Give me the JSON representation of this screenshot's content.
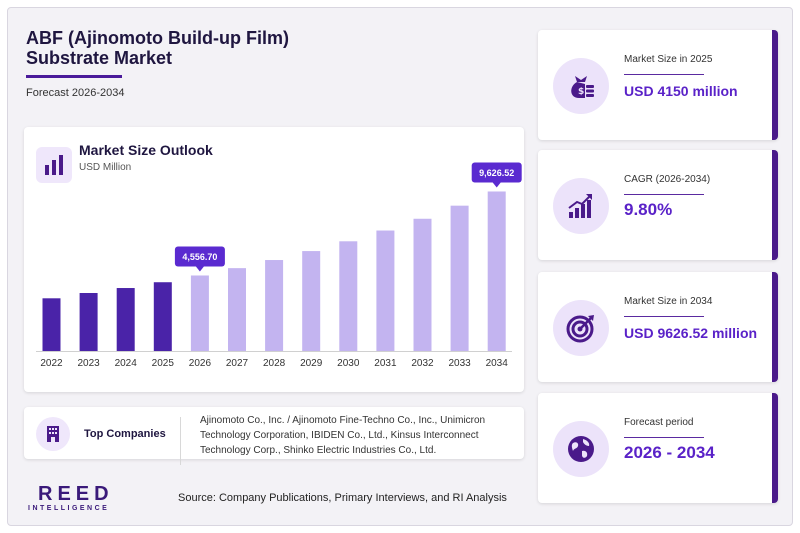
{
  "header": {
    "title_line1": "ABF (Ajinomoto Build-up Film)",
    "title_line2": "Substrate Market",
    "subtitle": "Forecast 2026-2034"
  },
  "chart_data": {
    "type": "bar",
    "title": "Market Size Outlook",
    "unit": "USD Million",
    "categories": [
      "2022",
      "2023",
      "2024",
      "2025",
      "2026",
      "2027",
      "2028",
      "2029",
      "2030",
      "2031",
      "2032",
      "2033",
      "2034"
    ],
    "values": [
      3180,
      3500,
      3800,
      4150,
      4556.7,
      5000,
      5490,
      6030,
      6620,
      7270,
      7980,
      8770,
      9626.52
    ],
    "historical_color": "#4a23a8",
    "forecast_color": "#c3b4f0",
    "callouts": [
      {
        "category": "2026",
        "label": "4,556.70"
      },
      {
        "category": "2034",
        "label": "9,626.52"
      }
    ],
    "callout_color": "#5a2ad0",
    "ylim": [
      0,
      10500
    ],
    "grid": false
  },
  "companies": {
    "label": "Top Companies",
    "text": "Ajinomoto Co., Inc. / Ajinomoto Fine-Techno Co., Inc., Unimicron Technology Corporation, IBIDEN Co., Ltd., Kinsus Interconnect Technology Corp., Shinko Electric Industries Co., Ltd."
  },
  "logo": {
    "main": "REED",
    "sub": "INTELLIGENCE"
  },
  "source": "Source: Company Publications, Primary Interviews, and RI Analysis",
  "stats": [
    {
      "label": "Market Size in 2025",
      "value": "USD 4150 million",
      "icon": "money-bag-icon"
    },
    {
      "label": "CAGR (2026-2034)",
      "value": "9.80%",
      "icon": "growth-chart-icon"
    },
    {
      "label": "Market Size in 2034",
      "value": "USD 9626.52 million",
      "icon": "target-icon"
    },
    {
      "label": "Forecast period",
      "value": "2026 - 2034",
      "icon": "globe-icon"
    }
  ]
}
